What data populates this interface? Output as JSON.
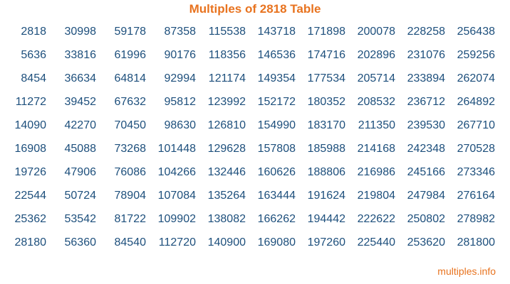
{
  "title": "Multiples of 2818 Table",
  "footer": "multiples.info",
  "colors": {
    "title": "#e8731f",
    "numbers": "#1d4f7c",
    "footer": "#e8731f"
  },
  "rows": [
    [
      "2818",
      "30998",
      "59178",
      "87358",
      "115538",
      "143718",
      "171898",
      "200078",
      "228258",
      "256438"
    ],
    [
      "5636",
      "33816",
      "61996",
      "90176",
      "118356",
      "146536",
      "174716",
      "202896",
      "231076",
      "259256"
    ],
    [
      "8454",
      "36634",
      "64814",
      "92994",
      "121174",
      "149354",
      "177534",
      "205714",
      "233894",
      "262074"
    ],
    [
      "11272",
      "39452",
      "67632",
      "95812",
      "123992",
      "152172",
      "180352",
      "208532",
      "236712",
      "264892"
    ],
    [
      "14090",
      "42270",
      "70450",
      "98630",
      "126810",
      "154990",
      "183170",
      "211350",
      "239530",
      "267710"
    ],
    [
      "16908",
      "45088",
      "73268",
      "101448",
      "129628",
      "157808",
      "185988",
      "214168",
      "242348",
      "270528"
    ],
    [
      "19726",
      "47906",
      "76086",
      "104266",
      "132446",
      "160626",
      "188806",
      "216986",
      "245166",
      "273346"
    ],
    [
      "22544",
      "50724",
      "78904",
      "107084",
      "135264",
      "163444",
      "191624",
      "219804",
      "247984",
      "276164"
    ],
    [
      "25362",
      "53542",
      "81722",
      "109902",
      "138082",
      "166262",
      "194442",
      "222622",
      "250802",
      "278982"
    ],
    [
      "28180",
      "56360",
      "84540",
      "112720",
      "140900",
      "169080",
      "197260",
      "225440",
      "253620",
      "281800"
    ]
  ]
}
